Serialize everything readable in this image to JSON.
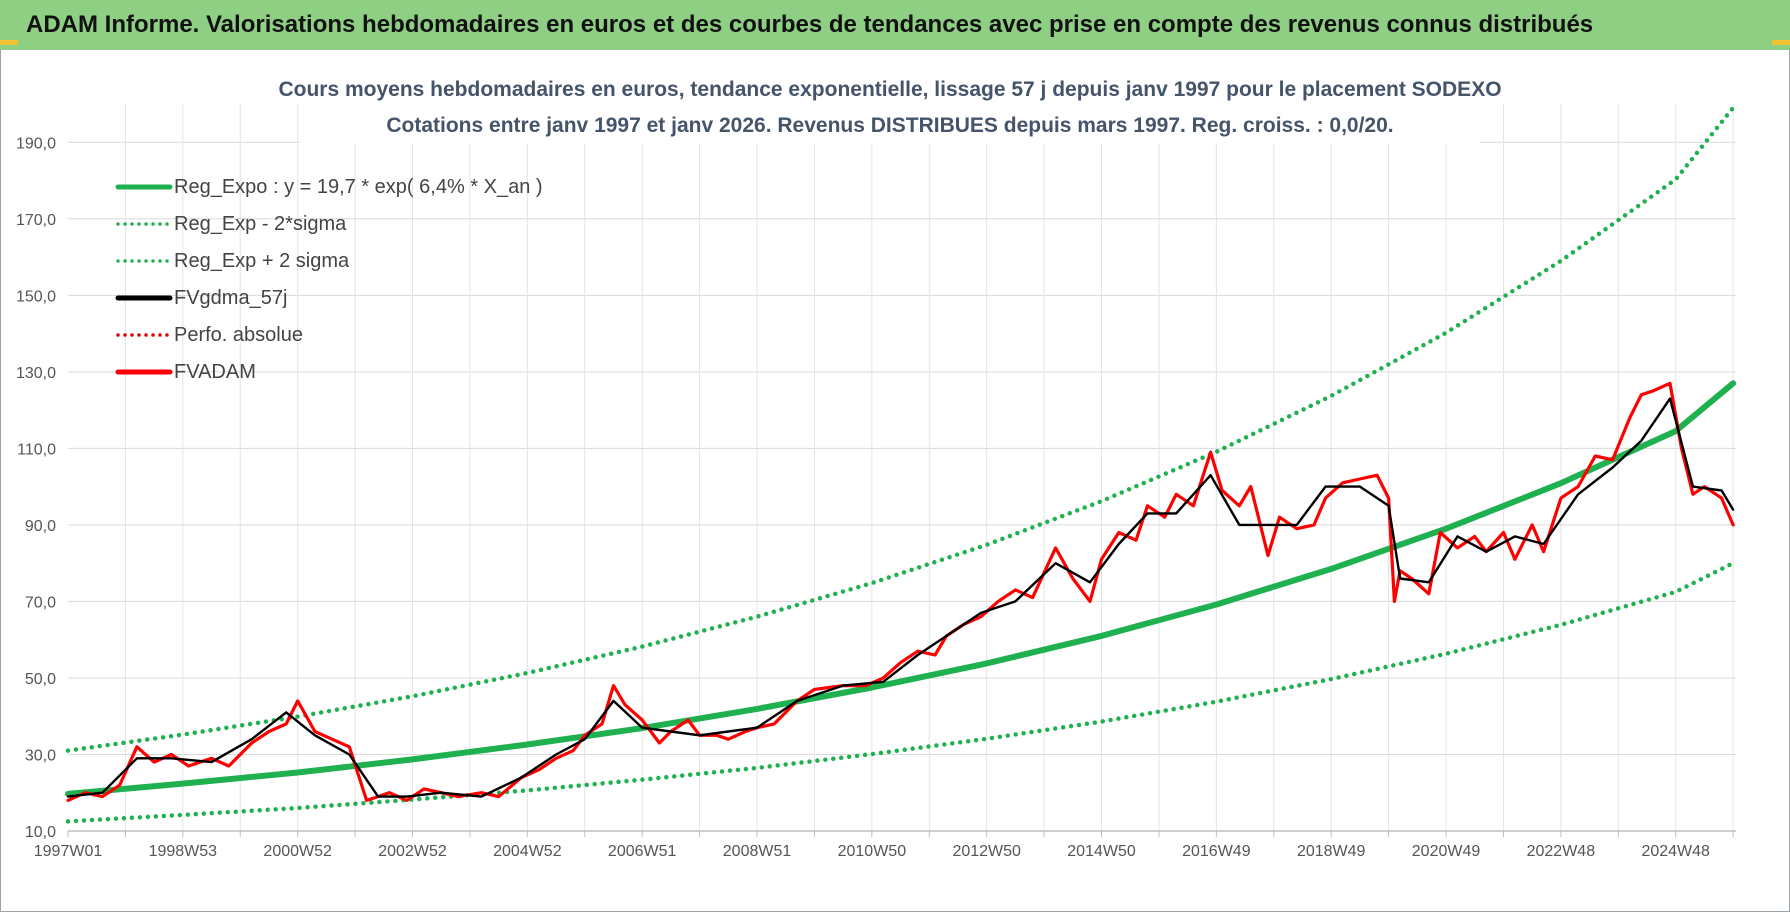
{
  "header": {
    "title": "ADAM Informe. Valorisations hebdomadaires en euros et des courbes de tendances avec prise en compte des revenus connus distribués"
  },
  "chart_data": {
    "type": "line",
    "title": "Cours moyens hebdomadaires en euros, tendance exponentielle, lissage 57 j depuis janv 1997 pour le placement SODEXO",
    "subtitle": "Cotations entre janv 1997 et janv 2026. Revenus DISTRIBUES depuis mars 1997.  Reg. croiss. : 0,0/20.",
    "xlabel": "",
    "ylabel": "",
    "xlim": [
      1997.0,
      2026.05
    ],
    "ylim": [
      10,
      200
    ],
    "grid": true,
    "legend_position": "top-left",
    "x_tick_labels": [
      {
        "x": 1997.0,
        "label": "1997W01"
      },
      {
        "x": 1999.0,
        "label": "1998W53"
      },
      {
        "x": 2001.0,
        "label": "2000W52"
      },
      {
        "x": 2003.0,
        "label": "2002W52"
      },
      {
        "x": 2005.0,
        "label": "2004W52"
      },
      {
        "x": 2007.0,
        "label": "2006W51"
      },
      {
        "x": 2009.0,
        "label": "2008W51"
      },
      {
        "x": 2011.0,
        "label": "2010W50"
      },
      {
        "x": 2013.0,
        "label": "2012W50"
      },
      {
        "x": 2015.0,
        "label": "2014W50"
      },
      {
        "x": 2017.0,
        "label": "2016W49"
      },
      {
        "x": 2019.0,
        "label": "2018W49"
      },
      {
        "x": 2021.0,
        "label": "2020W49"
      },
      {
        "x": 2023.0,
        "label": "2022W48"
      },
      {
        "x": 2025.0,
        "label": "2024W48"
      }
    ],
    "y_ticks": [
      {
        "v": 10,
        "label": "10,0"
      },
      {
        "v": 30,
        "label": "30,0"
      },
      {
        "v": 50,
        "label": "50,0"
      },
      {
        "v": 70,
        "label": "70,0"
      },
      {
        "v": 90,
        "label": "90,0"
      },
      {
        "v": 110,
        "label": "110,0"
      },
      {
        "v": 130,
        "label": "130,0"
      },
      {
        "v": 150,
        "label": "150,0"
      },
      {
        "v": 170,
        "label": "170,0"
      },
      {
        "v": 190,
        "label": "190,0"
      }
    ],
    "series": [
      {
        "name": "Reg_Expo : y = 19,7 * exp( 6,4% *  X_an )",
        "style": "solid",
        "color": "#1fb050",
        "x": [
          1997.0,
          1999.0,
          2001.0,
          2003.0,
          2005.0,
          2007.0,
          2009.0,
          2011.0,
          2013.0,
          2015.0,
          2017.0,
          2019.0,
          2021.0,
          2023.0,
          2025.0,
          2026.0
        ],
        "values": [
          19.7,
          22.4,
          25.3,
          28.7,
          32.6,
          36.9,
          41.9,
          47.5,
          53.8,
          61.0,
          69.2,
          78.5,
          89.0,
          100.9,
          114.5,
          127.0
        ]
      },
      {
        "name": "Reg_Exp - 2*sigma",
        "style": "dotted",
        "color": "#1fb050",
        "x": [
          1997.0,
          1999.0,
          2001.0,
          2003.0,
          2005.0,
          2007.0,
          2009.0,
          2011.0,
          2013.0,
          2015.0,
          2017.0,
          2019.0,
          2021.0,
          2023.0,
          2025.0,
          2026.0
        ],
        "values": [
          12.5,
          14.2,
          16.0,
          18.2,
          20.6,
          23.4,
          26.5,
          30.1,
          34.1,
          38.6,
          43.8,
          49.7,
          56.3,
          63.9,
          72.5,
          80.0
        ]
      },
      {
        "name": "Reg_Exp + 2 sigma",
        "style": "dotted",
        "color": "#1fb050",
        "x": [
          1997.0,
          1999.0,
          2001.0,
          2003.0,
          2005.0,
          2007.0,
          2009.0,
          2011.0,
          2013.0,
          2015.0,
          2017.0,
          2019.0,
          2021.0,
          2023.0,
          2025.0,
          2026.0
        ],
        "values": [
          31.0,
          35.2,
          39.9,
          45.2,
          51.3,
          58.2,
          66.0,
          74.8,
          84.8,
          96.2,
          109.1,
          123.7,
          140.2,
          159.0,
          180.3,
          199.0
        ]
      },
      {
        "name": "FVgdma_57j",
        "style": "solid-thin",
        "color": "#000000",
        "x": [
          1997.0,
          1997.6,
          1998.2,
          1998.8,
          1999.5,
          2000.2,
          2000.8,
          2001.3,
          2001.9,
          2002.4,
          2002.9,
          2003.5,
          2004.2,
          2004.9,
          2005.5,
          2006.0,
          2006.5,
          2007.0,
          2007.5,
          2008.0,
          2008.5,
          2009.0,
          2009.7,
          2010.5,
          2011.2,
          2011.8,
          2012.3,
          2012.9,
          2013.5,
          2014.2,
          2014.8,
          2015.3,
          2015.8,
          2016.3,
          2016.9,
          2017.4,
          2017.9,
          2018.4,
          2018.9,
          2019.5,
          2020.0,
          2020.2,
          2020.7,
          2021.2,
          2021.7,
          2022.2,
          2022.7,
          2023.3,
          2023.9,
          2024.4,
          2024.9,
          2025.3,
          2025.8,
          2026.0
        ],
        "values": [
          19,
          20,
          29,
          29,
          28,
          34,
          41,
          35,
          30,
          19,
          19,
          20,
          19,
          24,
          30,
          34,
          44,
          37,
          36,
          35,
          36,
          37,
          44,
          48,
          49,
          56,
          61,
          67,
          70,
          80,
          75,
          85,
          93,
          93,
          103,
          90,
          90,
          90,
          100,
          100,
          95,
          76,
          75,
          87,
          83,
          87,
          85,
          98,
          105,
          112,
          123,
          100,
          99,
          94
        ]
      },
      {
        "name": "Perfo. absolue",
        "style": "dotted",
        "color": "#e00000",
        "x": [],
        "values": []
      },
      {
        "name": "FVADAM",
        "style": "solid",
        "color": "#ff0000",
        "x": [
          1997.0,
          1997.3,
          1997.6,
          1997.9,
          1998.2,
          1998.5,
          1998.8,
          1999.1,
          1999.5,
          1999.8,
          2000.2,
          2000.5,
          2000.8,
          2001.0,
          2001.3,
          2001.6,
          2001.9,
          2002.2,
          2002.4,
          2002.6,
          2002.9,
          2003.2,
          2003.5,
          2003.8,
          2004.2,
          2004.5,
          2004.9,
          2005.2,
          2005.5,
          2005.8,
          2006.0,
          2006.3,
          2006.5,
          2006.7,
          2007.0,
          2007.3,
          2007.5,
          2007.8,
          2008.0,
          2008.3,
          2008.5,
          2008.8,
          2009.0,
          2009.3,
          2009.7,
          2010.0,
          2010.5,
          2010.9,
          2011.2,
          2011.5,
          2011.8,
          2012.1,
          2012.3,
          2012.6,
          2012.9,
          2013.2,
          2013.5,
          2013.8,
          2014.2,
          2014.5,
          2014.8,
          2015.0,
          2015.3,
          2015.6,
          2015.8,
          2016.1,
          2016.3,
          2016.6,
          2016.9,
          2017.1,
          2017.4,
          2017.6,
          2017.9,
          2018.1,
          2018.4,
          2018.7,
          2018.9,
          2019.2,
          2019.5,
          2019.8,
          2020.0,
          2020.1,
          2020.2,
          2020.4,
          2020.7,
          2020.9,
          2021.2,
          2021.5,
          2021.7,
          2022.0,
          2022.2,
          2022.5,
          2022.7,
          2023.0,
          2023.3,
          2023.6,
          2023.9,
          2024.2,
          2024.4,
          2024.6,
          2024.9,
          2025.1,
          2025.3,
          2025.5,
          2025.8,
          2026.0
        ],
        "values": [
          18,
          20,
          19,
          22,
          32,
          28,
          30,
          27,
          29,
          27,
          33,
          36,
          38,
          44,
          36,
          34,
          32,
          18,
          19,
          20,
          18,
          21,
          20,
          19,
          20,
          19,
          24,
          26,
          29,
          31,
          35,
          38,
          48,
          43,
          39,
          33,
          36,
          39,
          35,
          35,
          34,
          36,
          37,
          38,
          44,
          47,
          48,
          48,
          50,
          54,
          57,
          56,
          61,
          64,
          66,
          70,
          73,
          71,
          84,
          76,
          70,
          81,
          88,
          86,
          95,
          92,
          98,
          95,
          109,
          99,
          95,
          100,
          82,
          92,
          89,
          90,
          97,
          101,
          102,
          103,
          97,
          70,
          78,
          76,
          72,
          88,
          84,
          87,
          83,
          88,
          81,
          90,
          83,
          97,
          100,
          108,
          107,
          118,
          124,
          125,
          127,
          110,
          98,
          100,
          97,
          90
        ]
      }
    ]
  }
}
